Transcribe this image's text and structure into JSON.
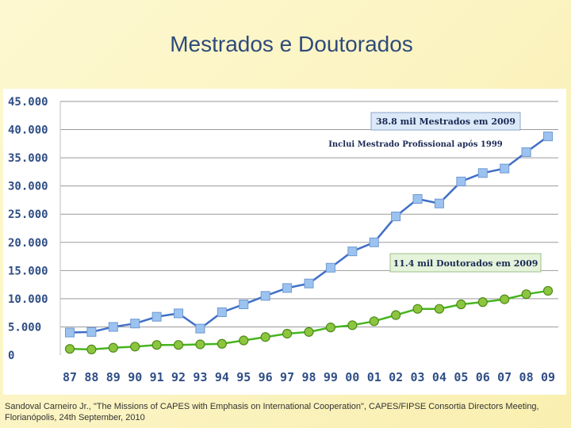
{
  "slide": {
    "title": "Mestrados e Doutorados",
    "footer_line1": "Sandoval Carneiro Jr., \"The Missions of CAPES with Emphasis on International Cooperation\", CAPES/FIPSE Consortia Directors Meeting,",
    "footer_line2": "Florianópolis, 24th September, 2010"
  },
  "chart_data": {
    "type": "line",
    "title": "Mestrados e Doutorados",
    "xlabel": "",
    "ylabel": "",
    "categories": [
      "87",
      "88",
      "89",
      "90",
      "91",
      "92",
      "93",
      "94",
      "95",
      "96",
      "97",
      "98",
      "99",
      "00",
      "01",
      "02",
      "03",
      "04",
      "05",
      "06",
      "07",
      "08",
      "09"
    ],
    "y_ticks": [
      0,
      5000,
      10000,
      15000,
      20000,
      25000,
      30000,
      35000,
      40000,
      45000
    ],
    "y_tick_labels": [
      "0",
      "5.000",
      "10.000",
      "15.000",
      "20.000",
      "25.000",
      "30.000",
      "35.000",
      "40.000",
      "45.000"
    ],
    "ylim": [
      0,
      45000
    ],
    "grid": true,
    "series": [
      {
        "marker": "square",
        "line_color": "#3f6fc6",
        "marker_color": "#9cc3ef",
        "values": [
          4000,
          4100,
          5000,
          5600,
          6800,
          7400,
          4700,
          7600,
          9000,
          10500,
          11900,
          12700,
          15500,
          18400,
          20000,
          24600,
          27700,
          26900,
          30800,
          32300,
          33100,
          36000,
          38800
        ]
      },
      {
        "marker": "circle",
        "line_color": "#46b51f",
        "marker_color": "#8cc63f",
        "values": [
          1100,
          1000,
          1300,
          1500,
          1800,
          1800,
          1900,
          2000,
          2600,
          3200,
          3800,
          4100,
          4900,
          5300,
          6000,
          7100,
          8200,
          8200,
          9000,
          9400,
          9900,
          10800,
          11400
        ]
      }
    ],
    "annotations": [
      {
        "text": "38.8 mil  Mestrados em 2009",
        "boxed": true
      },
      {
        "text": "Inclui Mestrado Profissional após 1999",
        "boxed": false
      },
      {
        "text": "11.4 mil Doutorados em  2009",
        "boxed": true
      }
    ]
  }
}
